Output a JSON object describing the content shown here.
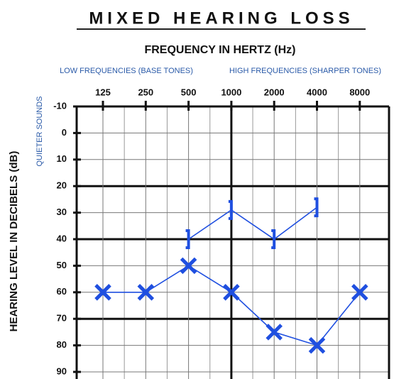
{
  "chart_data": {
    "type": "audiogram",
    "title": "MIXED HEARING LOSS",
    "x_label": "FREQUENCY IN HERTZ (Hz)",
    "x_note_left": "LOW FREQUENCIES (BASE TONES)",
    "x_note_right": "HIGH FREQUENCIES (SHARPER TONES)",
    "y_label": "HEARING LEVEL IN DECIBELS (dB)",
    "y_note_top": "QUIETER SOUNDS",
    "categories": [
      "125",
      "250",
      "500",
      "1000",
      "2000",
      "4000",
      "8000"
    ],
    "ylim": [
      -10,
      90
    ],
    "yticks": [
      -10,
      0,
      10,
      20,
      30,
      40,
      50,
      60,
      70,
      80,
      90
    ],
    "series": [
      {
        "marker": "x",
        "color": "#1f4fe0",
        "values": [
          60,
          60,
          50,
          60,
          75,
          80,
          60
        ]
      },
      {
        "marker": "bracket",
        "color": "#1f4fe0",
        "values": [
          null,
          null,
          40,
          29,
          40,
          28,
          null
        ]
      }
    ]
  }
}
